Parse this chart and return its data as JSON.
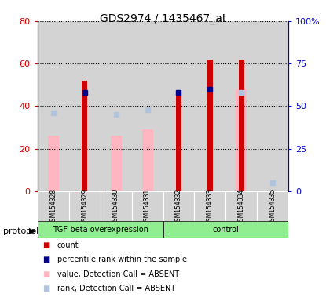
{
  "title": "GDS2974 / 1435467_at",
  "samples": [
    "GSM154328",
    "GSM154329",
    "GSM154330",
    "GSM154331",
    "GSM154332",
    "GSM154333",
    "GSM154334",
    "GSM154335"
  ],
  "red_bars": [
    0,
    52,
    0,
    0,
    46,
    62,
    62,
    0
  ],
  "pink_bars": [
    26,
    0,
    26,
    29,
    0,
    0,
    48,
    0
  ],
  "blue_squares_right": [
    0,
    58,
    0,
    0,
    58,
    60,
    0,
    0
  ],
  "light_blue_squares_right": [
    46,
    0,
    45,
    48,
    0,
    0,
    58,
    5
  ],
  "left_ylim": [
    0,
    80
  ],
  "right_ylim": [
    0,
    100
  ],
  "left_yticks": [
    0,
    20,
    40,
    60,
    80
  ],
  "right_yticks": [
    0,
    25,
    50,
    75,
    100
  ],
  "right_yticklabels": [
    "0",
    "25",
    "50",
    "75",
    "100%"
  ],
  "left_axis_color": "#cc0000",
  "right_axis_color": "#0000cc",
  "legend_items": [
    {
      "label": "count",
      "color": "#cc0000"
    },
    {
      "label": "percentile rank within the sample",
      "color": "#00008b"
    },
    {
      "label": "value, Detection Call = ABSENT",
      "color": "#ffb6c1"
    },
    {
      "label": "rank, Detection Call = ABSENT",
      "color": "#b0c4de"
    }
  ],
  "protocol_label": "protocol",
  "group_label_tgf": "TGF-beta overexpression",
  "group_label_ctrl": "control",
  "tgf_count": 4,
  "ctrl_count": 4,
  "red_bar_width": 0.18,
  "pink_bar_width": 0.35,
  "plot_bg": "#ffffff",
  "cell_bg": "#d3d3d3"
}
